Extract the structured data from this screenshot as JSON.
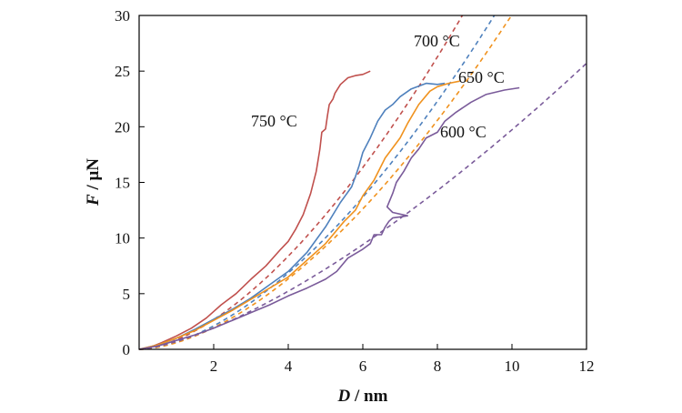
{
  "chart_data": {
    "type": "line",
    "xlabel_var": "D",
    "xlabel_unit": " / nm",
    "ylabel_var": "F",
    "ylabel_unit": " / μN",
    "xlim": [
      0,
      12
    ],
    "ylim": [
      0,
      30
    ],
    "xticks": [
      2,
      4,
      6,
      8,
      10,
      12
    ],
    "yticks": [
      0,
      5,
      10,
      15,
      20,
      25,
      30
    ],
    "grid": false,
    "legend": "inline labels",
    "series": [
      {
        "name": "750 °C",
        "color": "#c0504d",
        "points": [
          [
            0,
            0
          ],
          [
            0.3,
            0.2
          ],
          [
            0.6,
            0.6
          ],
          [
            1.0,
            1.2
          ],
          [
            1.4,
            1.9
          ],
          [
            1.8,
            2.8
          ],
          [
            2.2,
            4.0
          ],
          [
            2.6,
            5.0
          ],
          [
            3.0,
            6.3
          ],
          [
            3.4,
            7.5
          ],
          [
            3.8,
            9.0
          ],
          [
            4.0,
            9.7
          ],
          [
            4.2,
            10.8
          ],
          [
            4.4,
            12.1
          ],
          [
            4.6,
            14.0
          ],
          [
            4.75,
            16.0
          ],
          [
            4.85,
            18.0
          ],
          [
            4.9,
            19.5
          ],
          [
            5.0,
            19.8
          ],
          [
            5.05,
            21.0
          ],
          [
            5.1,
            22.0
          ],
          [
            5.2,
            22.5
          ],
          [
            5.25,
            23.0
          ],
          [
            5.4,
            23.8
          ],
          [
            5.6,
            24.4
          ],
          [
            5.8,
            24.6
          ],
          [
            6.0,
            24.7
          ],
          [
            6.2,
            25.0
          ]
        ]
      },
      {
        "name": "700 °C",
        "color": "#4f81bd",
        "points": [
          [
            0,
            0
          ],
          [
            0.5,
            0.4
          ],
          [
            1.0,
            1.0
          ],
          [
            1.5,
            1.8
          ],
          [
            2.0,
            2.7
          ],
          [
            2.5,
            3.6
          ],
          [
            3.0,
            4.6
          ],
          [
            3.5,
            5.8
          ],
          [
            4.0,
            7.0
          ],
          [
            4.5,
            8.7
          ],
          [
            5.0,
            11.0
          ],
          [
            5.4,
            13.2
          ],
          [
            5.7,
            14.6
          ],
          [
            5.8,
            15.5
          ],
          [
            5.9,
            16.5
          ],
          [
            6.0,
            17.7
          ],
          [
            6.2,
            19.0
          ],
          [
            6.4,
            20.5
          ],
          [
            6.6,
            21.5
          ],
          [
            6.8,
            22.0
          ],
          [
            7.0,
            22.7
          ],
          [
            7.3,
            23.4
          ],
          [
            7.7,
            23.9
          ],
          [
            8.0,
            23.8
          ],
          [
            8.2,
            23.9
          ]
        ]
      },
      {
        "name": "650 °C",
        "color": "#f0921e",
        "points": [
          [
            0,
            0
          ],
          [
            0.5,
            0.4
          ],
          [
            1.0,
            1.0
          ],
          [
            1.5,
            1.7
          ],
          [
            2.0,
            2.6
          ],
          [
            2.5,
            3.5
          ],
          [
            3.0,
            4.5
          ],
          [
            3.5,
            5.5
          ],
          [
            4.0,
            6.5
          ],
          [
            4.5,
            8.0
          ],
          [
            5.0,
            9.5
          ],
          [
            5.5,
            11.5
          ],
          [
            5.8,
            12.5
          ],
          [
            6.0,
            13.8
          ],
          [
            6.3,
            15.2
          ],
          [
            6.6,
            17.2
          ],
          [
            7.0,
            19.0
          ],
          [
            7.2,
            20.3
          ],
          [
            7.5,
            22.0
          ],
          [
            7.8,
            23.2
          ],
          [
            8.0,
            23.6
          ],
          [
            8.3,
            23.9
          ],
          [
            8.6,
            24.1
          ]
        ]
      },
      {
        "name": "600 °C",
        "color": "#7a5b9a",
        "points": [
          [
            0,
            0
          ],
          [
            0.5,
            0.3
          ],
          [
            1.0,
            0.8
          ],
          [
            1.5,
            1.3
          ],
          [
            2.0,
            1.9
          ],
          [
            2.5,
            2.6
          ],
          [
            3.0,
            3.3
          ],
          [
            3.5,
            4.0
          ],
          [
            4.0,
            4.8
          ],
          [
            4.5,
            5.5
          ],
          [
            5.0,
            6.3
          ],
          [
            5.3,
            7.0
          ],
          [
            5.6,
            8.2
          ],
          [
            6.0,
            9.0
          ],
          [
            6.2,
            9.5
          ],
          [
            6.3,
            10.3
          ],
          [
            6.5,
            10.3
          ],
          [
            6.6,
            11.0
          ],
          [
            6.7,
            11.5
          ],
          [
            6.8,
            11.8
          ],
          [
            7.0,
            11.9
          ],
          [
            7.2,
            12.0
          ],
          [
            6.8,
            12.3
          ],
          [
            6.65,
            12.8
          ],
          [
            6.8,
            14.0
          ],
          [
            6.9,
            15.0
          ],
          [
            7.1,
            16.0
          ],
          [
            7.3,
            17.2
          ],
          [
            7.5,
            18.0
          ],
          [
            7.7,
            19.0
          ],
          [
            8.0,
            19.5
          ],
          [
            8.2,
            20.5
          ],
          [
            8.5,
            21.3
          ],
          [
            8.9,
            22.2
          ],
          [
            9.3,
            22.9
          ],
          [
            9.8,
            23.3
          ],
          [
            10.2,
            23.5
          ]
        ]
      }
    ],
    "fits": [
      {
        "color": "#c0504d",
        "a": 0.85,
        "n": 1.65
      },
      {
        "color": "#4f81bd",
        "a": 0.65,
        "n": 1.7
      },
      {
        "color": "#f0921e",
        "a": 0.6,
        "n": 1.7
      },
      {
        "color": "#7a5b9a",
        "a": 0.7,
        "n": 1.45
      }
    ]
  }
}
